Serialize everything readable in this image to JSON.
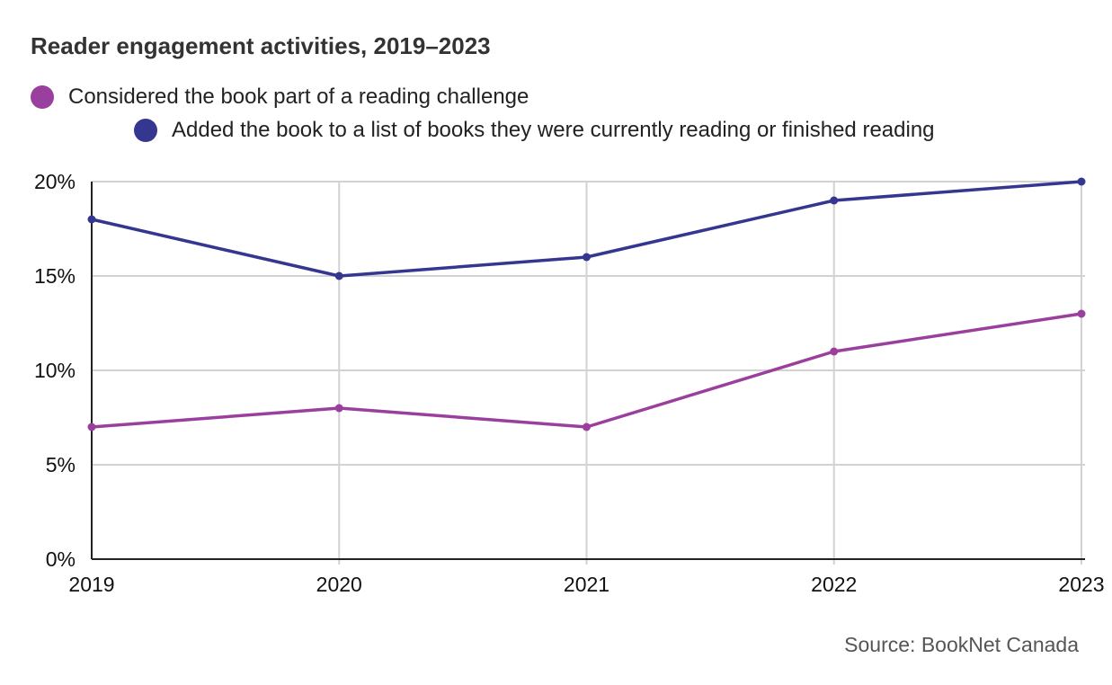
{
  "chart_data": {
    "type": "line",
    "title": "Reader engagement activities, 2019–2023",
    "x": [
      "2019",
      "2020",
      "2021",
      "2022",
      "2023"
    ],
    "series": [
      {
        "name": "Considered the book part of a reading challenge",
        "color": "#9b3f9e",
        "values": [
          7,
          8,
          7,
          11,
          13
        ]
      },
      {
        "name": "Added the book to a list of books they were currently reading or finished reading",
        "color": "#35368f",
        "values": [
          18,
          15,
          16,
          19,
          20
        ]
      }
    ],
    "ylim": [
      0,
      20
    ],
    "yticks": [
      0,
      5,
      10,
      15,
      20
    ],
    "ytick_labels": [
      "0%",
      "5%",
      "10%",
      "15%",
      "20%"
    ],
    "grid": true,
    "legend_position": "top-left",
    "source": "Source: BookNet Canada"
  }
}
